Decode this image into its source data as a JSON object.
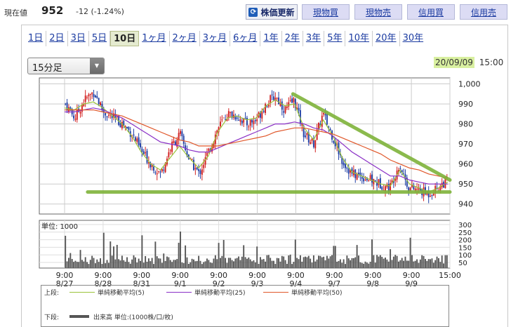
{
  "header": {
    "price_label": "現在値",
    "price": "952",
    "change": "-12 (-1.24%)",
    "refresh_button": "株価更新",
    "buttons": [
      "現物買",
      "現物売",
      "信用買",
      "信用売"
    ]
  },
  "range_tabs": [
    "1日",
    "2日",
    "3日",
    "5日",
    "10日",
    "1ヶ月",
    "2ヶ月",
    "3ヶ月",
    "6ヶ月",
    "1年",
    "2年",
    "3年",
    "5年",
    "10年",
    "20年",
    "30年"
  ],
  "active_range": "10日",
  "interval_select": {
    "value": "15分足"
  },
  "datetime": {
    "date": "20/09/09",
    "time": "15:00"
  },
  "colors": {
    "up": "#d21f1f",
    "down": "#1f3fa6",
    "ma5": "#9bc43a",
    "ma25": "#8a2fc6",
    "ma50": "#e0572a",
    "trend": "#7fb33a",
    "volume": "#555555"
  },
  "chart_data": {
    "type": "candlestick",
    "interval": "15分足",
    "price_axis": {
      "min": 940,
      "max": 1000,
      "ticks": [
        "940",
        "950",
        "960",
        "970",
        "980",
        "990",
        "1,000"
      ]
    },
    "volume_axis": {
      "unit_label": "単位: 1000",
      "ticks": [
        "50",
        "100",
        "150",
        "200",
        "250",
        "300"
      ]
    },
    "x_ticks": [
      {
        "time": "9:00",
        "date": "8/27"
      },
      {
        "time": "9:00",
        "date": "8/28"
      },
      {
        "time": "9:00",
        "date": "8/31"
      },
      {
        "time": "9:00",
        "date": "9/1"
      },
      {
        "time": "9:00",
        "date": "9/2"
      },
      {
        "time": "9:00",
        "date": "9/3"
      },
      {
        "time": "9:00",
        "date": "9/4"
      },
      {
        "time": "9:00",
        "date": "9/7"
      },
      {
        "time": "9:00",
        "date": "9/8"
      },
      {
        "time": "9:00",
        "date": "9/9"
      },
      {
        "time": "15:00",
        "date": ""
      }
    ],
    "close_path": [
      990,
      983,
      992,
      996,
      986,
      983,
      980,
      975,
      966,
      960,
      955,
      968,
      975,
      962,
      955,
      966,
      978,
      985,
      984,
      980,
      982,
      990,
      994,
      987,
      992,
      975,
      970,
      985,
      974,
      962,
      955,
      954,
      952,
      950,
      948,
      960,
      948,
      947,
      945,
      948,
      952
    ],
    "ma_series": [
      {
        "name": "単純移動平均(5)",
        "color": "#9bc43a",
        "values": [
          988,
          987,
          990,
          991,
          988,
          984,
          980,
          974,
          966,
          960,
          957,
          963,
          969,
          963,
          958,
          964,
          976,
          983,
          984,
          982,
          983,
          989,
          992,
          989,
          990,
          978,
          972,
          982,
          974,
          963,
          956,
          954,
          952,
          950,
          949,
          957,
          950,
          948,
          946,
          948,
          951
        ]
      },
      {
        "name": "単純移動平均(25)",
        "color": "#8a2fc6",
        "values": [
          986,
          986,
          987,
          988,
          987,
          985,
          983,
          980,
          977,
          974,
          971,
          970,
          969,
          967,
          966,
          966,
          968,
          970,
          972,
          974,
          976,
          978,
          980,
          980,
          981,
          980,
          978,
          977,
          974,
          970,
          966,
          963,
          960,
          957,
          954,
          954,
          952,
          951,
          950,
          950,
          950
        ]
      },
      {
        "name": "単純移動平均(50)",
        "color": "#e0572a",
        "values": [
          987,
          987,
          987,
          987,
          986,
          985,
          984,
          982,
          980,
          978,
          976,
          974,
          972,
          971,
          969,
          969,
          969,
          970,
          971,
          972,
          973,
          974,
          976,
          977,
          978,
          978,
          977,
          976,
          975,
          973,
          971,
          969,
          967,
          965,
          962,
          960,
          958,
          957,
          955,
          954,
          953
        ]
      }
    ],
    "trendlines": [
      {
        "from": {
          "session": "9/4 9:00",
          "price": 995
        },
        "to": {
          "session": "9/9 15:00",
          "price": 952
        }
      },
      {
        "from": {
          "session": "8/28",
          "price": 946
        },
        "to": {
          "session": "9/9 15:00",
          "price": 946
        }
      }
    ]
  },
  "legend": {
    "upper_label": "上段:",
    "lower_label": "下段:",
    "items": [
      {
        "label": "単純移動平均(5)",
        "color": "#9bc43a"
      },
      {
        "label": "単純移動平均(25)",
        "color": "#8a2fc6"
      },
      {
        "label": "単純移動平均(50)",
        "color": "#e0572a"
      }
    ],
    "volume_item": "出来高 単位:(1000株/口/枚)"
  }
}
